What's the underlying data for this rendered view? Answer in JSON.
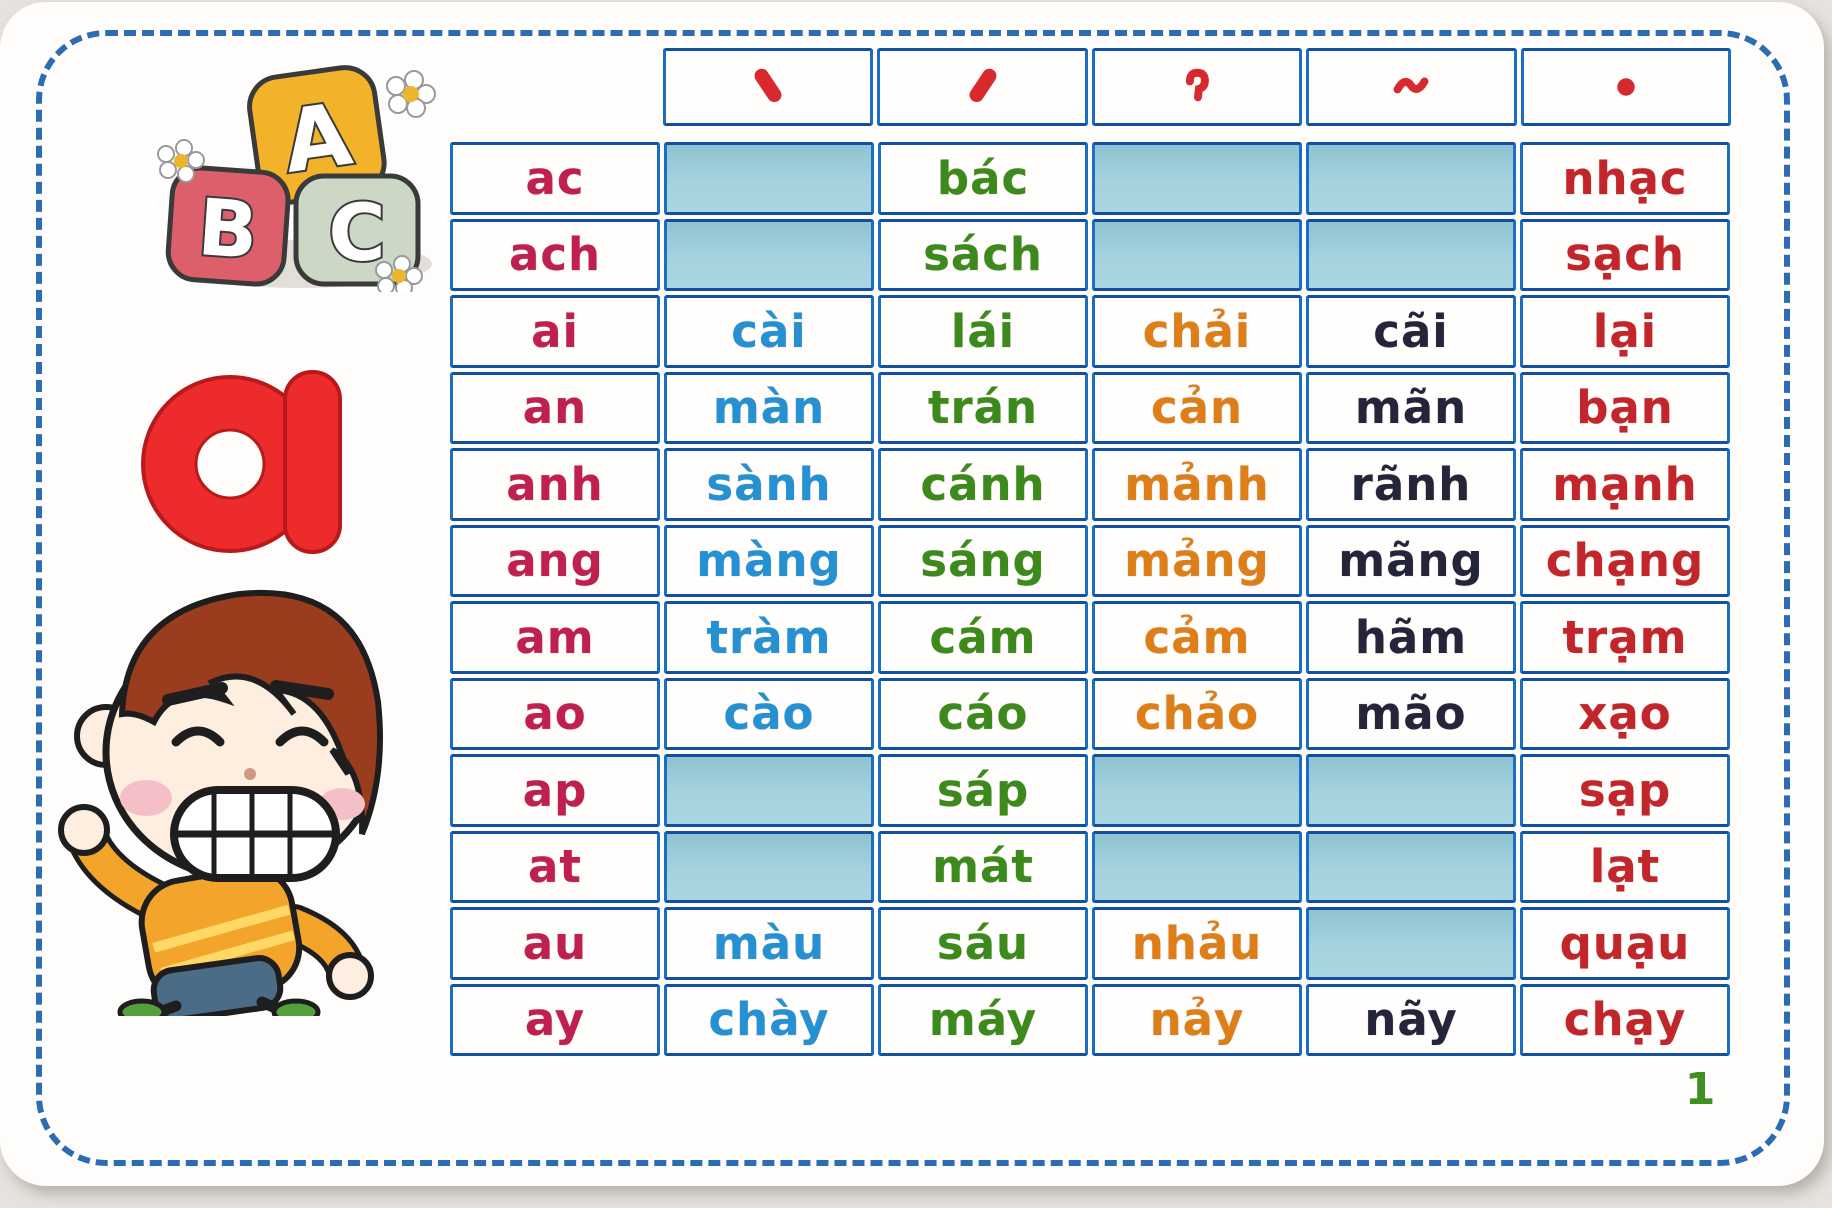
{
  "page_number": "1",
  "graphics": {
    "big_letter": "a",
    "blocks": [
      {
        "letter": "A",
        "color": "#f2b32b"
      },
      {
        "letter": "B",
        "color": "#dd5f6c"
      },
      {
        "letter": "C",
        "color": "#ccd7c5"
      }
    ]
  },
  "tone_header": {
    "marks": [
      {
        "name": "huyen",
        "glyph": "ˋ"
      },
      {
        "name": "sac",
        "glyph": "ˊ"
      },
      {
        "name": "hoi",
        "glyph": "ˀ"
      },
      {
        "name": "nga",
        "glyph": "˜"
      },
      {
        "name": "nang",
        "glyph": "."
      }
    ]
  },
  "colors": {
    "base": "#c0204e",
    "huyen": "#2590d2",
    "sac": "#3c8a1b",
    "hoi": "#de7e18",
    "nga": "#24243a",
    "nang": "#c3262a",
    "tonemark": "#d8292e",
    "border": "#1a6ec4",
    "shaded": "#9ecdd9",
    "pagenum": "#3f8f22"
  },
  "table": {
    "rows": [
      {
        "cells": [
          {
            "text": "ac",
            "tone": "base"
          },
          {
            "shaded": true
          },
          {
            "text": "bác",
            "tone": "sac"
          },
          {
            "shaded": true
          },
          {
            "shaded": true
          },
          {
            "text": "nhạc",
            "tone": "nang"
          }
        ]
      },
      {
        "cells": [
          {
            "text": "ach",
            "tone": "base"
          },
          {
            "shaded": true
          },
          {
            "text": "sách",
            "tone": "sac"
          },
          {
            "shaded": true
          },
          {
            "shaded": true
          },
          {
            "text": "sạch",
            "tone": "nang"
          }
        ]
      },
      {
        "cells": [
          {
            "text": "ai",
            "tone": "base"
          },
          {
            "text": "cài",
            "tone": "huyen"
          },
          {
            "text": "lái",
            "tone": "sac"
          },
          {
            "text": "chải",
            "tone": "hoi"
          },
          {
            "text": "cãi",
            "tone": "nga"
          },
          {
            "text": "lại",
            "tone": "nang"
          }
        ]
      },
      {
        "cells": [
          {
            "text": "an",
            "tone": "base"
          },
          {
            "text": "màn",
            "tone": "huyen"
          },
          {
            "text": "trán",
            "tone": "sac"
          },
          {
            "text": "cản",
            "tone": "hoi"
          },
          {
            "text": "mãn",
            "tone": "nga"
          },
          {
            "text": "bạn",
            "tone": "nang"
          }
        ]
      },
      {
        "cells": [
          {
            "text": "anh",
            "tone": "base"
          },
          {
            "text": "sành",
            "tone": "huyen"
          },
          {
            "text": "cánh",
            "tone": "sac"
          },
          {
            "text": "mảnh",
            "tone": "hoi"
          },
          {
            "text": "rãnh",
            "tone": "nga"
          },
          {
            "text": "mạnh",
            "tone": "nang"
          }
        ]
      },
      {
        "cells": [
          {
            "text": "ang",
            "tone": "base"
          },
          {
            "text": "màng",
            "tone": "huyen"
          },
          {
            "text": "sáng",
            "tone": "sac"
          },
          {
            "text": "mảng",
            "tone": "hoi"
          },
          {
            "text": "mãng",
            "tone": "nga"
          },
          {
            "text": "chạng",
            "tone": "nang"
          }
        ]
      },
      {
        "cells": [
          {
            "text": "am",
            "tone": "base"
          },
          {
            "text": "tràm",
            "tone": "huyen"
          },
          {
            "text": "cám",
            "tone": "sac"
          },
          {
            "text": "cảm",
            "tone": "hoi"
          },
          {
            "text": "hãm",
            "tone": "nga"
          },
          {
            "text": "trạm",
            "tone": "nang"
          }
        ]
      },
      {
        "cells": [
          {
            "text": "ao",
            "tone": "base"
          },
          {
            "text": "cào",
            "tone": "huyen"
          },
          {
            "text": "cáo",
            "tone": "sac"
          },
          {
            "text": "chảo",
            "tone": "hoi"
          },
          {
            "text": "mão",
            "tone": "nga"
          },
          {
            "text": "xạo",
            "tone": "nang"
          }
        ]
      },
      {
        "cells": [
          {
            "text": "ap",
            "tone": "base"
          },
          {
            "shaded": true
          },
          {
            "text": "sáp",
            "tone": "sac"
          },
          {
            "shaded": true
          },
          {
            "shaded": true
          },
          {
            "text": "sạp",
            "tone": "nang"
          }
        ]
      },
      {
        "cells": [
          {
            "text": "at",
            "tone": "base"
          },
          {
            "shaded": true
          },
          {
            "text": "mát",
            "tone": "sac"
          },
          {
            "shaded": true
          },
          {
            "shaded": true
          },
          {
            "text": "lạt",
            "tone": "nang"
          }
        ]
      },
      {
        "cells": [
          {
            "text": "au",
            "tone": "base"
          },
          {
            "text": "màu",
            "tone": "huyen"
          },
          {
            "text": "sáu",
            "tone": "sac"
          },
          {
            "text": "nhảu",
            "tone": "hoi"
          },
          {
            "shaded": true
          },
          {
            "text": "quạu",
            "tone": "nang"
          }
        ]
      },
      {
        "cells": [
          {
            "text": "ay",
            "tone": "base"
          },
          {
            "text": "chày",
            "tone": "huyen"
          },
          {
            "text": "máy",
            "tone": "sac"
          },
          {
            "text": "nảy",
            "tone": "hoi"
          },
          {
            "text": "nãy",
            "tone": "nga"
          },
          {
            "text": "chạy",
            "tone": "nang"
          }
        ]
      }
    ]
  }
}
